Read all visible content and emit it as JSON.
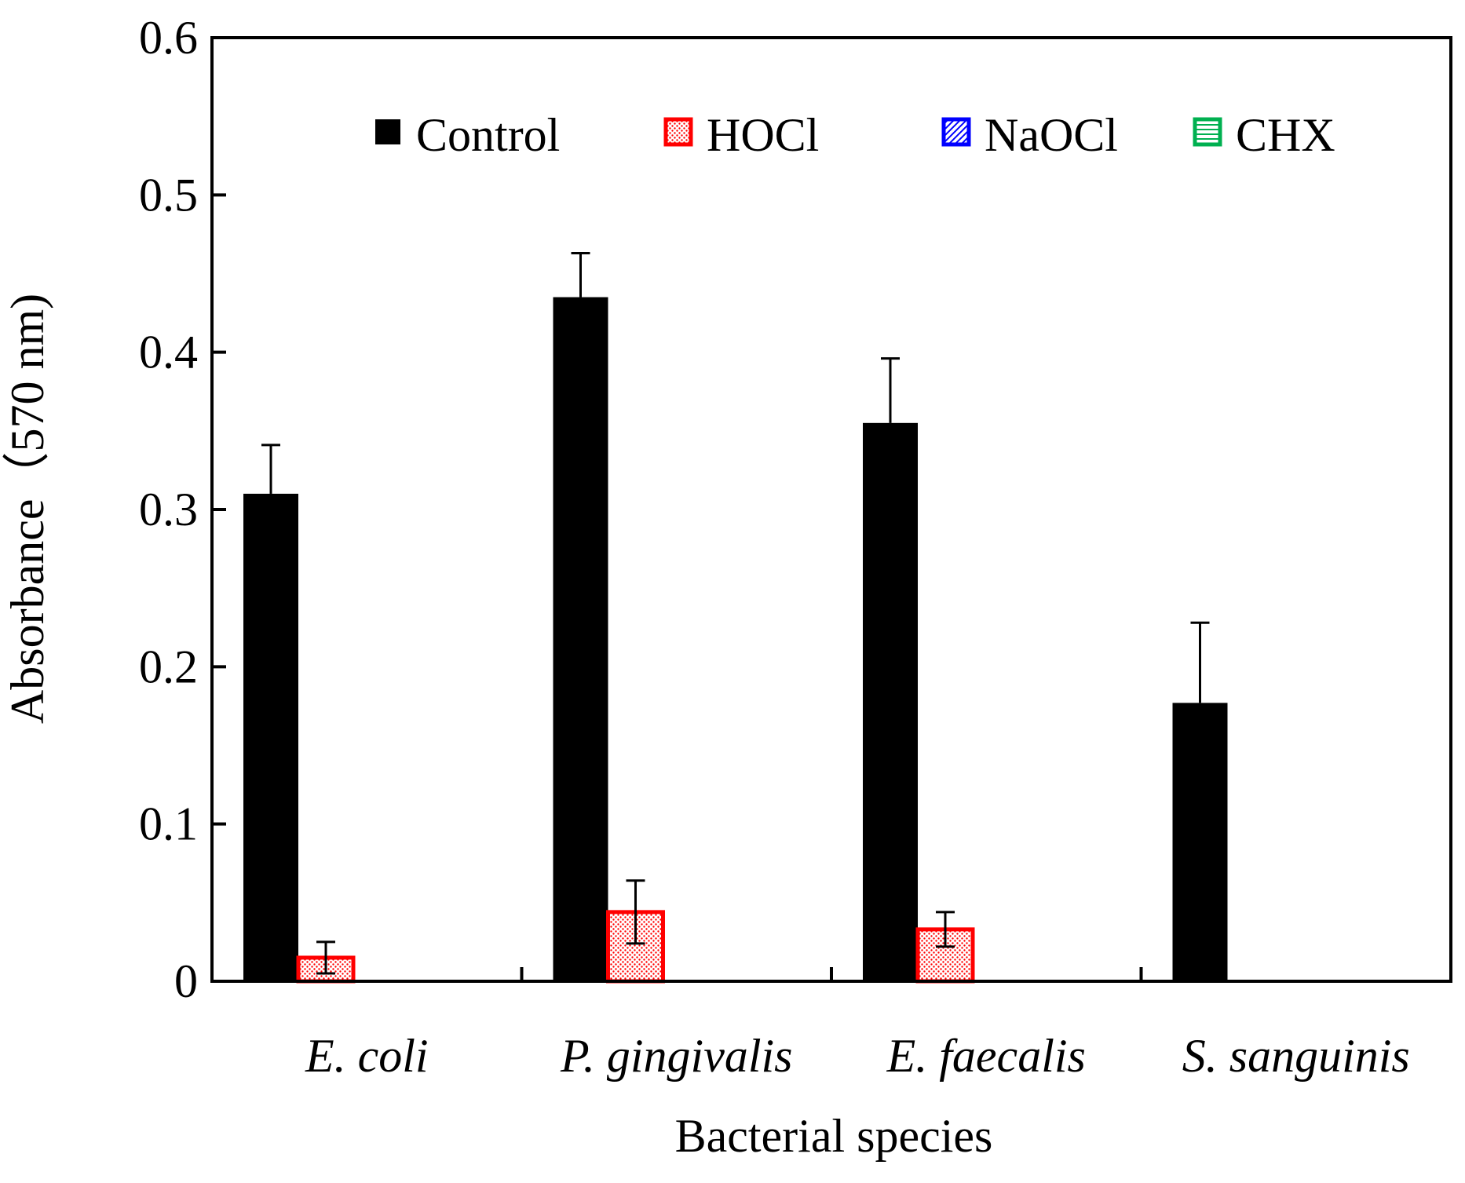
{
  "chart_data": {
    "type": "bar",
    "title": "",
    "xlabel": "Bacterial species",
    "ylabel": "Absorbance（570 nm)",
    "ylim": [
      0,
      0.6
    ],
    "yticks": [
      "0",
      "0.1",
      "0.2",
      "0.3",
      "0.4",
      "0.5",
      "0.6"
    ],
    "categories": [
      "E. coli",
      "P. gingivalis",
      "E. faecalis",
      "S. sanguinis"
    ],
    "grid": false,
    "legend_position": "top",
    "series": [
      {
        "name": "Control",
        "color": "#000000",
        "pattern": "solid",
        "values": [
          0.31,
          0.435,
          0.355,
          0.177
        ],
        "errors": [
          0.031,
          0.028,
          0.041,
          0.051
        ]
      },
      {
        "name": "HOCl",
        "color": "#ff0000",
        "pattern": "dots",
        "values": [
          0.015,
          0.044,
          0.033,
          0
        ],
        "errors": [
          0.01,
          0.02,
          0.011,
          0
        ]
      },
      {
        "name": "NaOCl",
        "color": "#0000ff",
        "pattern": "diagonal",
        "values": [
          0,
          0,
          0,
          0
        ],
        "errors": [
          0,
          0,
          0,
          0
        ]
      },
      {
        "name": "CHX",
        "color": "#00b050",
        "pattern": "horizontal",
        "values": [
          0,
          0,
          0,
          0
        ],
        "errors": [
          0,
          0,
          0,
          0
        ]
      }
    ]
  }
}
